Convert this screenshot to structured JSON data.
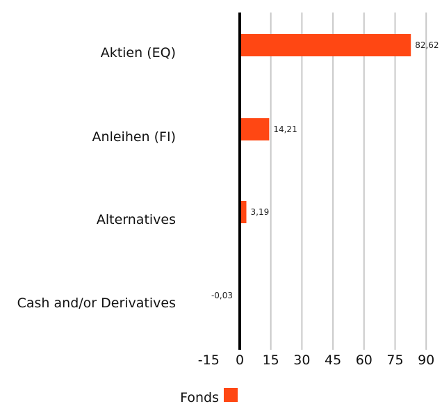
{
  "chart_data": {
    "type": "bar",
    "orientation": "horizontal",
    "categories": [
      "Aktien (EQ)",
      "Anleihen (FI)",
      "Alternatives",
      "Cash and/or Derivatives"
    ],
    "series": [
      {
        "name": "Fonds",
        "values": [
          82.62,
          14.21,
          3.19,
          -0.03
        ],
        "color": "#ff4713"
      }
    ],
    "data_labels": [
      "82,62",
      "14,21",
      "3,19",
      "-0,03"
    ],
    "xlim": [
      -15,
      90
    ],
    "xticks": [
      -15,
      0,
      15,
      30,
      45,
      60,
      75,
      90
    ],
    "xtick_labels": [
      "-15",
      "0",
      "15",
      "30",
      "45",
      "60",
      "75",
      "90"
    ],
    "grid": "vertical",
    "legend": "bottom-center",
    "colors": {
      "bar": "#ff4713",
      "grid": "#c8c8c8",
      "zero_line": "#000000"
    }
  }
}
